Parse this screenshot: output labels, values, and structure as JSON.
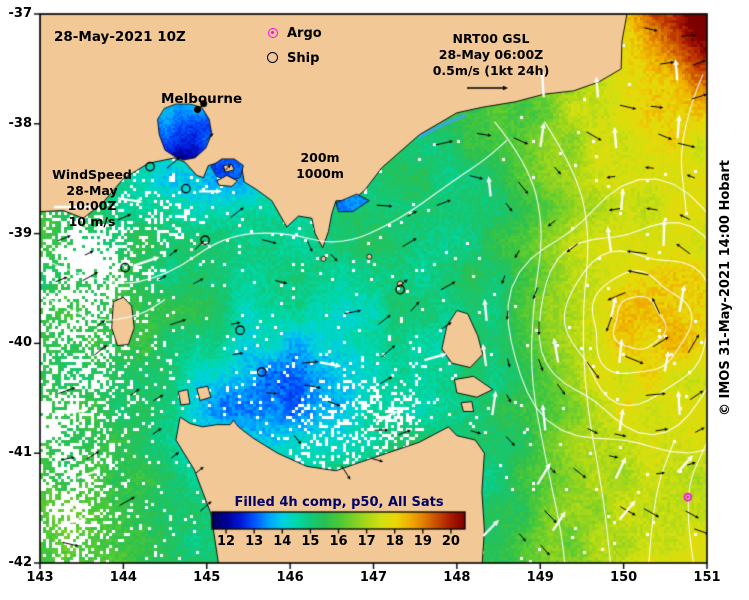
{
  "title_block": {
    "date_label": "28-May-2021 10Z"
  },
  "legend": {
    "argo_label": "Argo",
    "ship_label": "Ship",
    "argo_color": "#ff00ff",
    "ship_color": "#000000"
  },
  "city_label": "Melbourne",
  "gsl_ref": {
    "line1": "NRT00 GSL",
    "line2": "28-May 06:00Z",
    "line3": "0.5m/s (1kt 24h)"
  },
  "wind_ref": {
    "line1": "WindSpeed",
    "line2": "28-May 10:00Z",
    "line3": "10 m/s"
  },
  "depth_labels": {
    "line1": "200m",
    "line2": "1000m"
  },
  "credit": "© IMOS 31-May-2021 14:00 Hobart",
  "axes": {
    "x_ticks": [
      143,
      144,
      145,
      146,
      147,
      148,
      149,
      150,
      151
    ],
    "y_ticks": [
      -37,
      -38,
      -39,
      -40,
      -41,
      -42
    ],
    "x_range": [
      143,
      151
    ],
    "y_range": [
      -37,
      -42
    ]
  },
  "colorbar": {
    "title": "Filled 4h comp, p50, All Sats",
    "ticks": [
      12,
      13,
      14,
      15,
      16,
      17,
      18,
      19,
      20
    ],
    "range": [
      11.5,
      20.5
    ],
    "stops": [
      [
        11.5,
        "#000060"
      ],
      [
        12,
        "#000095"
      ],
      [
        12.5,
        "#0018d8"
      ],
      [
        13,
        "#0055ff"
      ],
      [
        13.5,
        "#00a2ff"
      ],
      [
        14,
        "#00d2e0"
      ],
      [
        14.5,
        "#00d8a8"
      ],
      [
        15,
        "#12c878"
      ],
      [
        15.5,
        "#2ac052"
      ],
      [
        16,
        "#4ac838"
      ],
      [
        16.5,
        "#7ad028"
      ],
      [
        17,
        "#aad818"
      ],
      [
        17.5,
        "#d2e010"
      ],
      [
        18,
        "#e8d808"
      ],
      [
        18.5,
        "#f0b000"
      ],
      [
        19,
        "#e08000"
      ],
      [
        19.5,
        "#c84800"
      ],
      [
        20,
        "#a81800"
      ],
      [
        20.5,
        "#7c0000"
      ]
    ]
  },
  "map_colors": {
    "land": "#f2c896",
    "cloud": "#ffffff",
    "contour": "#ffffff",
    "current_arrow": "#000000",
    "wind_arrow": "#ffffff",
    "coastline": "#000000",
    "background": "#ffffff"
  },
  "observations": {
    "ship_points": [
      [
        144.32,
        -38.39
      ],
      [
        144.75,
        -38.59
      ],
      [
        144.98,
        -39.06
      ],
      [
        144.02,
        -39.31
      ],
      [
        145.4,
        -39.88
      ],
      [
        145.66,
        -40.26
      ],
      [
        147.32,
        -39.51
      ]
    ],
    "argo_points": [
      [
        150.77,
        -41.4
      ]
    ],
    "city_point": [
      144.963,
      -37.814
    ]
  }
}
